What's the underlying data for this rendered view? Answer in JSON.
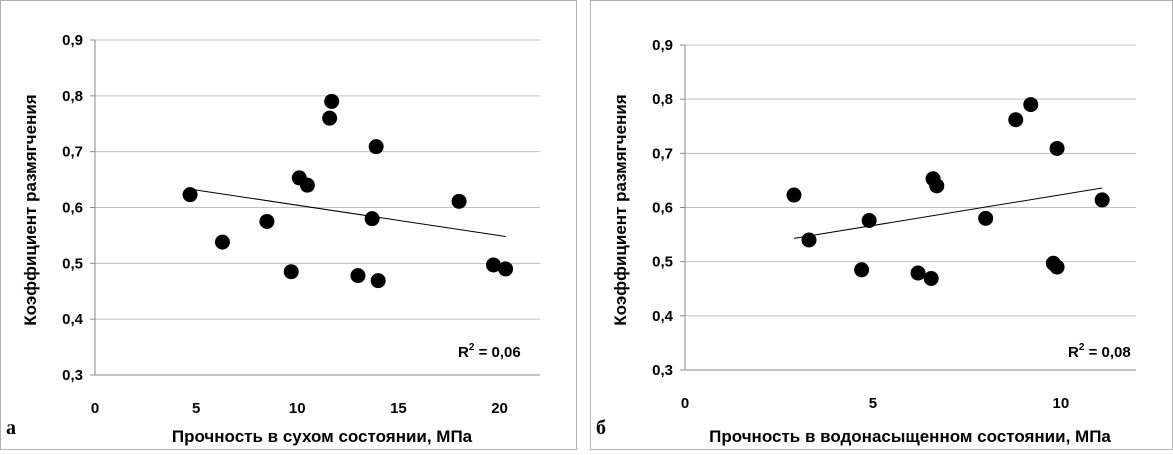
{
  "chart_data": [
    {
      "type": "scatter",
      "panel_label": "а",
      "xlabel": "Прочность в сухом состоянии, МПа",
      "ylabel": "Коэффициент размягчения",
      "xlim": [
        0,
        22
      ],
      "ylim": [
        0.3,
        0.9
      ],
      "x_ticks": [
        0,
        5,
        10,
        15,
        20
      ],
      "y_ticks": [
        0.3,
        0.4,
        0.5,
        0.6,
        0.7,
        0.8,
        0.9
      ],
      "x_tick_labels": [
        "0",
        "5",
        "10",
        "15",
        "20"
      ],
      "y_tick_labels": [
        "0,3",
        "0,4",
        "0,5",
        "0,6",
        "0,7",
        "0,8",
        "0,9"
      ],
      "grid": true,
      "points": [
        {
          "x": 4.7,
          "y": 0.623
        },
        {
          "x": 6.3,
          "y": 0.538
        },
        {
          "x": 8.5,
          "y": 0.575
        },
        {
          "x": 9.7,
          "y": 0.485
        },
        {
          "x": 10.1,
          "y": 0.653
        },
        {
          "x": 10.5,
          "y": 0.64
        },
        {
          "x": 11.6,
          "y": 0.76
        },
        {
          "x": 11.7,
          "y": 0.79
        },
        {
          "x": 13.0,
          "y": 0.478
        },
        {
          "x": 13.7,
          "y": 0.58
        },
        {
          "x": 13.9,
          "y": 0.709
        },
        {
          "x": 14.0,
          "y": 0.469
        },
        {
          "x": 18.0,
          "y": 0.611
        },
        {
          "x": 19.7,
          "y": 0.497
        },
        {
          "x": 20.3,
          "y": 0.49
        }
      ],
      "trendline": {
        "x1": 4.7,
        "y1": 0.633,
        "x2": 20.3,
        "y2": 0.548
      },
      "r_squared_label": "R",
      "r_squared_value": " = 0,06"
    },
    {
      "type": "scatter",
      "panel_label": "б",
      "xlabel": "Прочность в водонасыщенном состоянии, МПа",
      "ylabel": "Коэффициент размягчения",
      "xlim": [
        0,
        12
      ],
      "ylim": [
        0.3,
        0.9
      ],
      "x_ticks": [
        0,
        5,
        10
      ],
      "y_ticks": [
        0.3,
        0.4,
        0.5,
        0.6,
        0.7,
        0.8,
        0.9
      ],
      "x_tick_labels": [
        "0",
        "5",
        "10"
      ],
      "y_tick_labels": [
        "0,3",
        "0,4",
        "0,5",
        "0,6",
        "0,7",
        "0,8",
        "0,9"
      ],
      "grid": true,
      "points": [
        {
          "x": 2.9,
          "y": 0.623
        },
        {
          "x": 3.3,
          "y": 0.54
        },
        {
          "x": 4.7,
          "y": 0.485
        },
        {
          "x": 4.9,
          "y": 0.576
        },
        {
          "x": 6.2,
          "y": 0.479
        },
        {
          "x": 6.55,
          "y": 0.469
        },
        {
          "x": 6.6,
          "y": 0.653
        },
        {
          "x": 6.7,
          "y": 0.64
        },
        {
          "x": 8.0,
          "y": 0.58
        },
        {
          "x": 8.8,
          "y": 0.762
        },
        {
          "x": 9.2,
          "y": 0.79
        },
        {
          "x": 9.8,
          "y": 0.497
        },
        {
          "x": 9.9,
          "y": 0.709
        },
        {
          "x": 9.9,
          "y": 0.49
        },
        {
          "x": 11.1,
          "y": 0.614
        }
      ],
      "trendline": {
        "x1": 2.9,
        "y1": 0.543,
        "x2": 11.1,
        "y2": 0.636
      },
      "r_squared_label": "R",
      "r_squared_value": " = 0,08"
    }
  ]
}
